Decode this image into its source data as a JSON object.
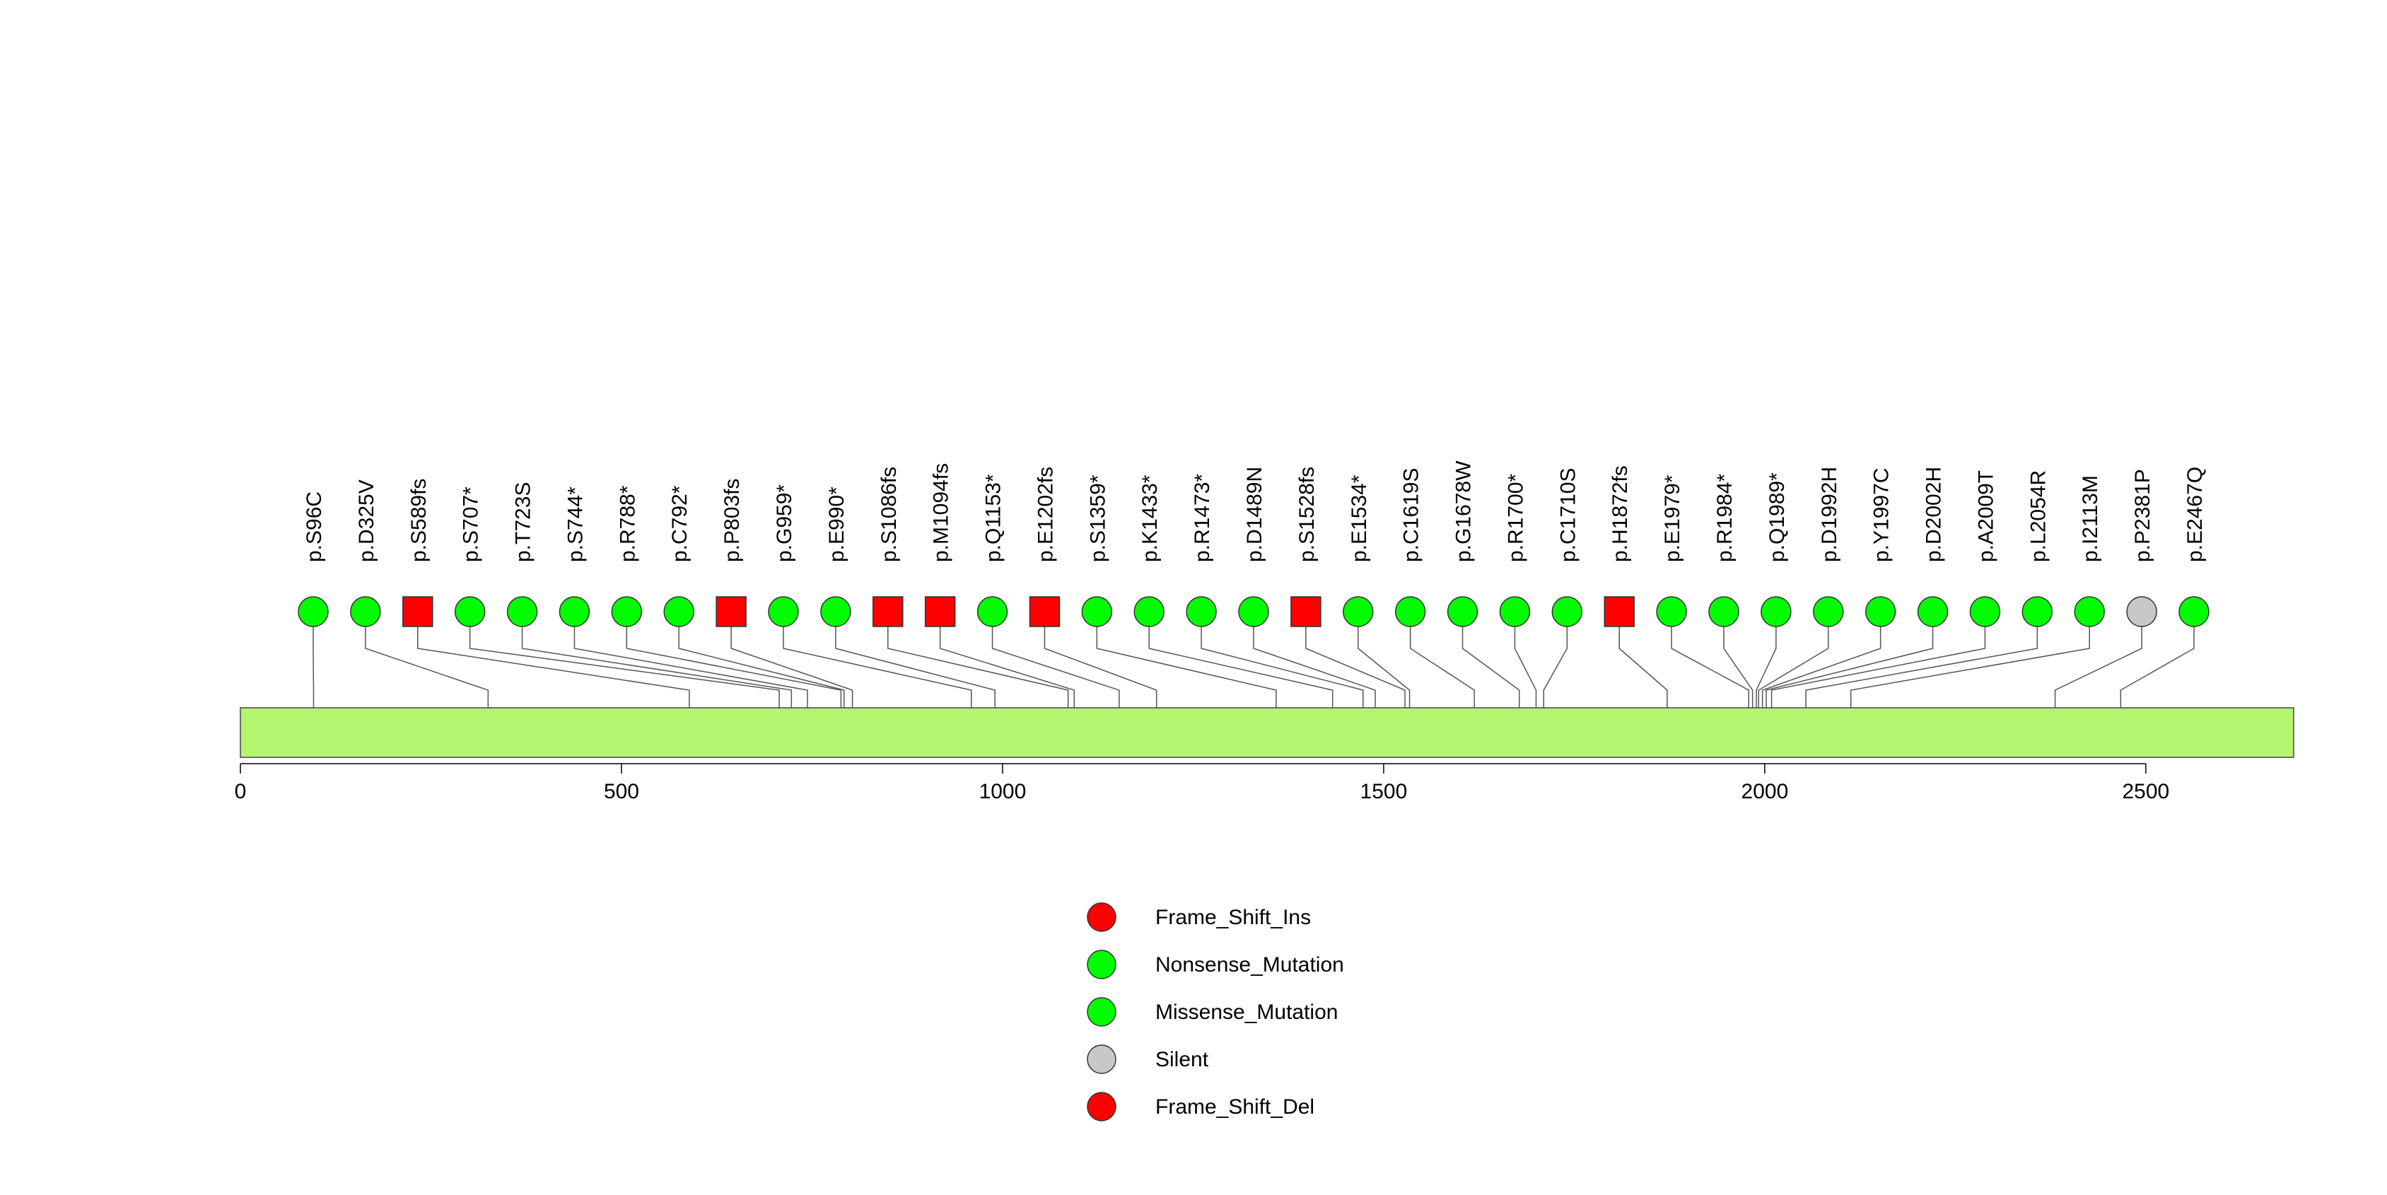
{
  "chart_data": {
    "type": "lollipop",
    "x_ticks": [
      0,
      500,
      1000,
      1500,
      2000,
      2500
    ],
    "xlim": [
      0,
      2694
    ],
    "domain_bar": {
      "color": "#b3f56f",
      "stroke": "#444444"
    },
    "classes": {
      "Frame_Shift_Ins": "#ff0000",
      "Nonsense_Mutation": "#00ff00",
      "Missense_Mutation": "#00ff00",
      "Silent": "#c8c8c8",
      "Frame_Shift_Del": "#ff0000"
    },
    "mutations": [
      {
        "label": "p.S96C",
        "position": 96,
        "class": "Missense_Mutation",
        "shape": "circle"
      },
      {
        "label": "p.D325V",
        "position": 325,
        "class": "Missense_Mutation",
        "shape": "circle"
      },
      {
        "label": "p.S589fs",
        "position": 589,
        "class": "Frame_Shift_Del",
        "shape": "square"
      },
      {
        "label": "p.S707*",
        "position": 707,
        "class": "Nonsense_Mutation",
        "shape": "circle"
      },
      {
        "label": "p.T723S",
        "position": 723,
        "class": "Missense_Mutation",
        "shape": "circle"
      },
      {
        "label": "p.S744*",
        "position": 744,
        "class": "Nonsense_Mutation",
        "shape": "circle"
      },
      {
        "label": "p.R788*",
        "position": 788,
        "class": "Nonsense_Mutation",
        "shape": "circle"
      },
      {
        "label": "p.C792*",
        "position": 792,
        "class": "Nonsense_Mutation",
        "shape": "circle"
      },
      {
        "label": "p.P803fs",
        "position": 803,
        "class": "Frame_Shift_Del",
        "shape": "square"
      },
      {
        "label": "p.G959*",
        "position": 959,
        "class": "Nonsense_Mutation",
        "shape": "circle"
      },
      {
        "label": "p.E990*",
        "position": 990,
        "class": "Nonsense_Mutation",
        "shape": "circle"
      },
      {
        "label": "p.S1086fs",
        "position": 1086,
        "class": "Frame_Shift_Del",
        "shape": "square"
      },
      {
        "label": "p.M1094fs",
        "position": 1094,
        "class": "Frame_Shift_Del",
        "shape": "square"
      },
      {
        "label": "p.Q1153*",
        "position": 1153,
        "class": "Nonsense_Mutation",
        "shape": "circle"
      },
      {
        "label": "p.E1202fs",
        "position": 1202,
        "class": "Frame_Shift_Del",
        "shape": "square"
      },
      {
        "label": "p.S1359*",
        "position": 1359,
        "class": "Nonsense_Mutation",
        "shape": "circle"
      },
      {
        "label": "p.K1433*",
        "position": 1433,
        "class": "Nonsense_Mutation",
        "shape": "circle"
      },
      {
        "label": "p.R1473*",
        "position": 1473,
        "class": "Nonsense_Mutation",
        "shape": "circle"
      },
      {
        "label": "p.D1489N",
        "position": 1489,
        "class": "Missense_Mutation",
        "shape": "circle"
      },
      {
        "label": "p.S1528fs",
        "position": 1528,
        "class": "Frame_Shift_Del",
        "shape": "square"
      },
      {
        "label": "p.E1534*",
        "position": 1534,
        "class": "Nonsense_Mutation",
        "shape": "circle"
      },
      {
        "label": "p.C1619S",
        "position": 1619,
        "class": "Missense_Mutation",
        "shape": "circle"
      },
      {
        "label": "p.G1678W",
        "position": 1678,
        "class": "Missense_Mutation",
        "shape": "circle"
      },
      {
        "label": "p.R1700*",
        "position": 1700,
        "class": "Nonsense_Mutation",
        "shape": "circle"
      },
      {
        "label": "p.C1710S",
        "position": 1710,
        "class": "Missense_Mutation",
        "shape": "circle"
      },
      {
        "label": "p.H1872fs",
        "position": 1872,
        "class": "Frame_Shift_Del",
        "shape": "square"
      },
      {
        "label": "p.E1979*",
        "position": 1979,
        "class": "Nonsense_Mutation",
        "shape": "circle"
      },
      {
        "label": "p.R1984*",
        "position": 1984,
        "class": "Nonsense_Mutation",
        "shape": "circle"
      },
      {
        "label": "p.Q1989*",
        "position": 1989,
        "class": "Nonsense_Mutation",
        "shape": "circle"
      },
      {
        "label": "p.D1992H",
        "position": 1992,
        "class": "Missense_Mutation",
        "shape": "circle"
      },
      {
        "label": "p.Y1997C",
        "position": 1997,
        "class": "Missense_Mutation",
        "shape": "circle"
      },
      {
        "label": "p.D2002H",
        "position": 2002,
        "class": "Missense_Mutation",
        "shape": "circle"
      },
      {
        "label": "p.A2009T",
        "position": 2009,
        "class": "Missense_Mutation",
        "shape": "circle"
      },
      {
        "label": "p.L2054R",
        "position": 2054,
        "class": "Missense_Mutation",
        "shape": "circle"
      },
      {
        "label": "p.I2113M",
        "position": 2113,
        "class": "Missense_Mutation",
        "shape": "circle"
      },
      {
        "label": "p.P2381P",
        "position": 2381,
        "class": "Silent",
        "shape": "circle"
      },
      {
        "label": "p.E2467Q",
        "position": 2467,
        "class": "Missense_Mutation",
        "shape": "circle"
      }
    ],
    "legend": {
      "placement": "bottom-center",
      "entries": [
        {
          "label": "Frame_Shift_Ins",
          "color": "#ff0000"
        },
        {
          "label": "Nonsense_Mutation",
          "color": "#00ff00"
        },
        {
          "label": "Missense_Mutation",
          "color": "#00ff00"
        },
        {
          "label": "Silent",
          "color": "#c8c8c8"
        },
        {
          "label": "Frame_Shift_Del",
          "color": "#ff0000"
        }
      ]
    }
  }
}
